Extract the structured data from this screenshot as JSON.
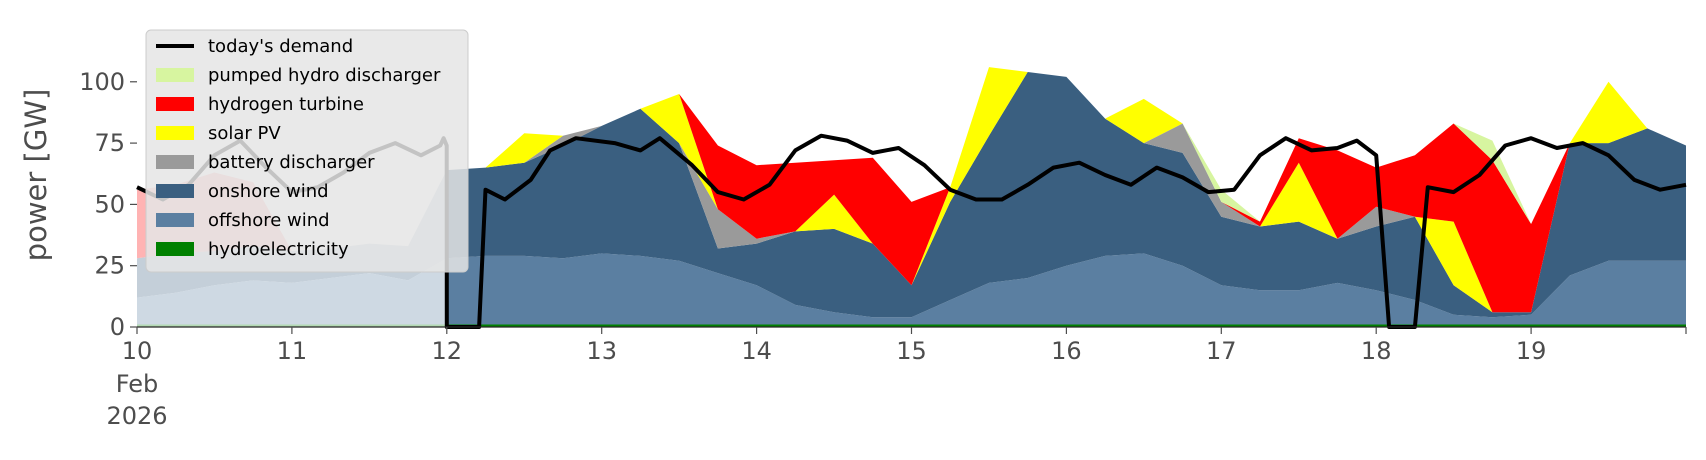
{
  "chart_data": {
    "type": "area",
    "ylabel": "power [GW]",
    "xlabel": "",
    "ylim": [
      0,
      115
    ],
    "y_ticks": [
      "0",
      "25",
      "50",
      "75",
      "100"
    ],
    "x_range": [
      "2026-02-10 00:00",
      "2026-02-20 00:00"
    ],
    "x_ticks": [
      {
        "date": "2026-02-10",
        "label": "10",
        "sub": [
          "Feb",
          "2026"
        ]
      },
      {
        "date": "2026-02-11",
        "label": "11"
      },
      {
        "date": "2026-02-12",
        "label": "12"
      },
      {
        "date": "2026-02-13",
        "label": "13"
      },
      {
        "date": "2026-02-14",
        "label": "14"
      },
      {
        "date": "2026-02-15",
        "label": "15"
      },
      {
        "date": "2026-02-16",
        "label": "16"
      },
      {
        "date": "2026-02-17",
        "label": "17"
      },
      {
        "date": "2026-02-18",
        "label": "18"
      },
      {
        "date": "2026-02-19",
        "label": "19"
      }
    ],
    "legend_position": "top-left",
    "grid": false,
    "x": [
      "2026-02-10 00:00",
      "2026-02-10 06:00",
      "2026-02-10 12:00",
      "2026-02-10 18:00",
      "2026-02-11 00:00",
      "2026-02-11 06:00",
      "2026-02-11 12:00",
      "2026-02-11 18:00",
      "2026-02-12 00:00",
      "2026-02-12 06:00",
      "2026-02-12 12:00",
      "2026-02-12 18:00",
      "2026-02-13 00:00",
      "2026-02-13 06:00",
      "2026-02-13 12:00",
      "2026-02-13 18:00",
      "2026-02-14 00:00",
      "2026-02-14 06:00",
      "2026-02-14 12:00",
      "2026-02-14 18:00",
      "2026-02-15 00:00",
      "2026-02-15 06:00",
      "2026-02-15 12:00",
      "2026-02-15 18:00",
      "2026-02-16 00:00",
      "2026-02-16 06:00",
      "2026-02-16 12:00",
      "2026-02-16 18:00",
      "2026-02-17 00:00",
      "2026-02-17 06:00",
      "2026-02-17 12:00",
      "2026-02-17 18:00",
      "2026-02-18 00:00",
      "2026-02-18 06:00",
      "2026-02-18 12:00",
      "2026-02-18 18:00",
      "2026-02-19 00:00",
      "2026-02-19 06:00",
      "2026-02-19 12:00",
      "2026-02-19 18:00",
      "2026-02-20 00:00"
    ],
    "stack_series": [
      {
        "name": "hydroelectricity",
        "color": "#008000",
        "values": [
          1,
          1,
          1,
          1,
          1,
          1,
          1,
          1,
          1,
          1,
          1,
          1,
          1,
          1,
          1,
          1,
          1,
          1,
          1,
          1,
          1,
          1,
          1,
          1,
          1,
          1,
          1,
          1,
          1,
          1,
          1,
          1,
          1,
          1,
          1,
          1,
          1,
          1,
          1,
          1,
          1
        ]
      },
      {
        "name": "offshore wind",
        "color": "#5b7fa1",
        "values": [
          11,
          13,
          16,
          18,
          17,
          19,
          21,
          18,
          27,
          28,
          28,
          27,
          29,
          28,
          26,
          21,
          16,
          8,
          5,
          3,
          3,
          10,
          17,
          19,
          24,
          28,
          29,
          24,
          16,
          14,
          14,
          17,
          14,
          10,
          4,
          3,
          4,
          20,
          26,
          26,
          26
        ]
      },
      {
        "name": "onshore wind",
        "color": "#3a5f80",
        "values": [
          16,
          16,
          14,
          14,
          13,
          12,
          12,
          14,
          36,
          36,
          38,
          46,
          52,
          60,
          48,
          10,
          17,
          30,
          34,
          30,
          13,
          40,
          60,
          84,
          77,
          56,
          45,
          46,
          28,
          26,
          28,
          18,
          26,
          34,
          12,
          2,
          1,
          54,
          48,
          54,
          47
        ]
      },
      {
        "name": "battery discharger",
        "color": "#9a9a9a",
        "values": [
          0,
          0,
          0,
          0,
          0,
          0,
          0,
          0,
          0,
          0,
          0,
          4,
          0,
          0,
          0,
          16,
          2,
          0,
          0,
          0,
          0,
          0,
          0,
          0,
          0,
          0,
          0,
          12,
          6,
          0,
          0,
          0,
          8,
          0,
          0,
          0,
          0,
          0,
          0,
          0,
          0
        ]
      },
      {
        "name": "solar PV",
        "color": "#ffff00",
        "values": [
          0,
          0,
          0,
          0,
          0,
          0,
          0,
          0,
          0,
          0,
          12,
          0,
          0,
          0,
          20,
          0,
          0,
          0,
          14,
          0,
          0,
          6,
          28,
          0,
          0,
          0,
          18,
          0,
          0,
          0,
          24,
          0,
          0,
          0,
          26,
          0,
          0,
          0,
          25,
          0,
          0
        ]
      },
      {
        "name": "hydrogen turbine",
        "color": "#ff0000",
        "values": [
          28,
          28,
          32,
          26,
          0,
          0,
          0,
          0,
          0,
          0,
          0,
          0,
          0,
          0,
          0,
          26,
          30,
          28,
          14,
          35,
          34,
          0,
          0,
          0,
          0,
          0,
          0,
          0,
          0,
          2,
          10,
          36,
          16,
          25,
          40,
          62,
          36,
          0,
          0,
          0,
          0
        ]
      },
      {
        "name": "pumped hydro discharger",
        "color": "#d7f5a0",
        "values": [
          0,
          0,
          0,
          0,
          0,
          0,
          0,
          0,
          0,
          0,
          0,
          0,
          0,
          0,
          0,
          0,
          0,
          0,
          0,
          0,
          0,
          0,
          0,
          0,
          0,
          0,
          0,
          0,
          5,
          0,
          0,
          0,
          0,
          0,
          0,
          8,
          0,
          0,
          0,
          0,
          0
        ]
      }
    ],
    "overlay_box": {
      "from": "2026-02-10 00:00",
      "to": "2026-02-12 00:00",
      "top": 80
    },
    "demand": {
      "name": "today's demand",
      "color": "#000000",
      "points": [
        [
          "2026-02-10 00:00",
          57
        ],
        [
          "2026-02-10 04:00",
          52
        ],
        [
          "2026-02-10 08:00",
          58
        ],
        [
          "2026-02-10 12:00",
          70
        ],
        [
          "2026-02-10 16:00",
          76
        ],
        [
          "2026-02-10 20:00",
          65
        ],
        [
          "2026-02-11 00:00",
          55
        ],
        [
          "2026-02-11 04:00",
          57
        ],
        [
          "2026-02-11 08:00",
          63
        ],
        [
          "2026-02-11 12:00",
          71
        ],
        [
          "2026-02-11 16:00",
          75
        ],
        [
          "2026-02-11 20:00",
          70
        ],
        [
          "2026-02-11 23:00",
          74
        ],
        [
          "2026-02-11 23:30",
          77
        ],
        [
          "2026-02-11 23:59",
          74
        ],
        [
          "2026-02-12 00:00",
          0
        ],
        [
          "2026-02-12 05:00",
          0
        ],
        [
          "2026-02-12 06:00",
          56
        ],
        [
          "2026-02-12 09:00",
          52
        ],
        [
          "2026-02-12 13:00",
          60
        ],
        [
          "2026-02-12 16:00",
          72
        ],
        [
          "2026-02-12 20:00",
          77
        ],
        [
          "2026-02-13 02:00",
          75
        ],
        [
          "2026-02-13 06:00",
          72
        ],
        [
          "2026-02-13 09:00",
          77
        ],
        [
          "2026-02-13 14:00",
          66
        ],
        [
          "2026-02-13 18:00",
          55
        ],
        [
          "2026-02-13 22:00",
          52
        ],
        [
          "2026-02-14 02:00",
          58
        ],
        [
          "2026-02-14 06:00",
          72
        ],
        [
          "2026-02-14 10:00",
          78
        ],
        [
          "2026-02-14 14:00",
          76
        ],
        [
          "2026-02-14 18:00",
          71
        ],
        [
          "2026-02-14 22:00",
          73
        ],
        [
          "2026-02-15 02:00",
          66
        ],
        [
          "2026-02-15 06:00",
          56
        ],
        [
          "2026-02-15 10:00",
          52
        ],
        [
          "2026-02-15 14:00",
          52
        ],
        [
          "2026-02-15 18:00",
          58
        ],
        [
          "2026-02-15 22:00",
          65
        ],
        [
          "2026-02-16 02:00",
          67
        ],
        [
          "2026-02-16 06:00",
          62
        ],
        [
          "2026-02-16 10:00",
          58
        ],
        [
          "2026-02-16 14:00",
          65
        ],
        [
          "2026-02-16 18:00",
          61
        ],
        [
          "2026-02-16 22:00",
          55
        ],
        [
          "2026-02-17 02:00",
          56
        ],
        [
          "2026-02-17 06:00",
          70
        ],
        [
          "2026-02-17 10:00",
          77
        ],
        [
          "2026-02-17 14:00",
          72
        ],
        [
          "2026-02-17 18:00",
          73
        ],
        [
          "2026-02-17 21:00",
          76
        ],
        [
          "2026-02-18 00:00",
          70
        ],
        [
          "2026-02-18 02:00",
          0
        ],
        [
          "2026-02-18 06:00",
          0
        ],
        [
          "2026-02-18 08:00",
          57
        ],
        [
          "2026-02-18 12:00",
          55
        ],
        [
          "2026-02-18 16:00",
          62
        ],
        [
          "2026-02-18 20:00",
          74
        ],
        [
          "2026-02-19 00:00",
          77
        ],
        [
          "2026-02-19 04:00",
          73
        ],
        [
          "2026-02-19 08:00",
          75
        ],
        [
          "2026-02-19 12:00",
          70
        ],
        [
          "2026-02-19 16:00",
          60
        ],
        [
          "2026-02-19 20:00",
          56
        ],
        [
          "2026-02-20 00:00",
          58
        ]
      ]
    }
  }
}
